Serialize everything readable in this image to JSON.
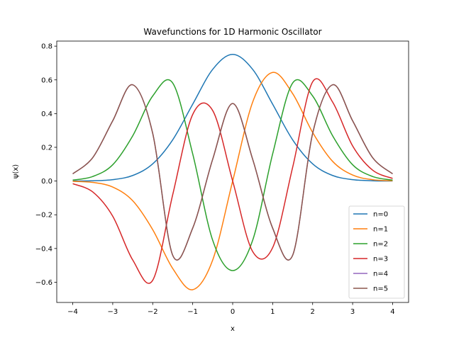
{
  "chart_data": {
    "type": "line",
    "title": "Wavefunctions for 1D Harmonic Oscillator",
    "xlabel": "x",
    "ylabel": "ψ(x)",
    "xlim": [
      -4.4,
      4.4
    ],
    "ylim": [
      -0.72,
      0.83
    ],
    "xticks": [
      -4,
      -3,
      -2,
      -1,
      0,
      1,
      2,
      3,
      4
    ],
    "xtick_labels": [
      "−4",
      "−3",
      "−2",
      "−1",
      "0",
      "1",
      "2",
      "3",
      "4"
    ],
    "yticks": [
      -0.6,
      -0.4,
      -0.2,
      0.0,
      0.2,
      0.4,
      0.6,
      0.8
    ],
    "ytick_labels": [
      "−0.6",
      "−0.4",
      "−0.2",
      "0.0",
      "0.2",
      "0.4",
      "0.6",
      "0.8"
    ],
    "grid": false,
    "legend_position": "bottom-right",
    "x": [
      -4.0,
      -3.5,
      -3.0,
      -2.5,
      -2.0,
      -1.5,
      -1.0,
      -0.5,
      0.0,
      0.5,
      1.0,
      1.5,
      2.0,
      2.5,
      3.0,
      3.5,
      4.0
    ],
    "series": [
      {
        "name": "n=0",
        "color": "#1f77b4",
        "values": [
          0.0003,
          0.0016,
          0.0084,
          0.033,
          0.1019,
          0.2443,
          0.4556,
          0.6622,
          0.7511,
          0.6622,
          0.4556,
          0.2443,
          0.1019,
          0.033,
          0.0084,
          0.0016,
          0.0003
        ]
      },
      {
        "name": "n=1",
        "color": "#ff7f0e",
        "values": [
          -0.0019,
          -0.008,
          -0.0357,
          -0.1167,
          -0.2883,
          -0.5183,
          -0.6443,
          -0.4683,
          0.0,
          0.4683,
          0.6443,
          0.5183,
          0.2883,
          0.1167,
          0.0357,
          0.008,
          0.0019
        ]
      },
      {
        "name": "n=2",
        "color": "#2ca02c",
        "values": [
          0.0055,
          0.0269,
          0.0968,
          0.2684,
          0.5044,
          0.5816,
          0.1611,
          -0.3511,
          -0.5311,
          -0.3511,
          0.1611,
          0.5816,
          0.5044,
          0.2684,
          0.0968,
          0.0269,
          0.0055
        ]
      },
      {
        "name": "n=3",
        "color": "#d62728",
        "values": [
          -0.0156,
          -0.0646,
          -0.2085,
          -0.4681,
          -0.5885,
          -0.0814,
          0.3947,
          0.4181,
          0.0,
          -0.4181,
          -0.3947,
          0.0814,
          0.5885,
          0.4681,
          0.2085,
          0.0646,
          0.0156
        ]
      },
      {
        "name": "n=4",
        "color": "#9467bd",
        "values": [
          0.0426,
          0.1389,
          0.3574,
          0.5708,
          0.2825,
          -0.4401,
          -0.2791,
          0.1293,
          0.46,
          0.1293,
          -0.2791,
          -0.4401,
          0.2825,
          0.5708,
          0.3574,
          0.1389,
          0.0426
        ]
      },
      {
        "name": "n=5",
        "color": "#8c564b",
        "values": [
          0.0426,
          0.1389,
          0.3574,
          0.5708,
          0.2825,
          -0.4401,
          -0.2791,
          0.1293,
          0.46,
          0.1293,
          -0.2791,
          -0.4401,
          0.2825,
          0.5708,
          0.3574,
          0.1389,
          0.0426
        ]
      }
    ]
  }
}
